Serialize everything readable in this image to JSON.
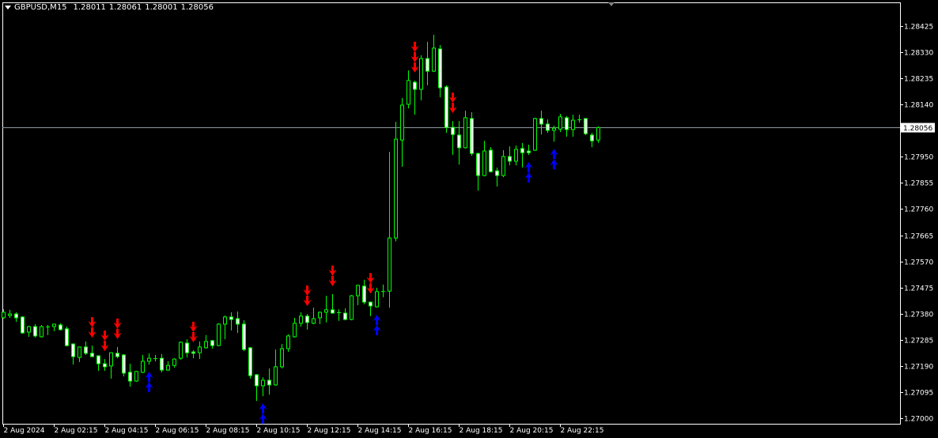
{
  "header": {
    "symbol": "GBPUSD,M15",
    "open": "1.28011",
    "high": "1.28061",
    "low": "1.28001",
    "close": "1.28056"
  },
  "colors": {
    "background": "#000000",
    "candle_outline": "#00ff00",
    "bull_fill": "#000000",
    "bear_fill": "#ffffff",
    "sell_arrow": "#ff0000",
    "buy_arrow": "#0000ff",
    "grid_line": "#ffffff",
    "price_line": "#8c96a0"
  },
  "chart_data": {
    "type": "candlestick",
    "symbol": "GBPUSD",
    "timeframe": "M15",
    "ylim": [
      1.27,
      1.28425
    ],
    "grid": false,
    "current_price": "1.28056",
    "yticks": [
      "1.28425",
      "1.28330",
      "1.28235",
      "1.28140",
      "1.27950",
      "1.27855",
      "1.27760",
      "1.27665",
      "1.27570",
      "1.27475",
      "1.27380",
      "1.27285",
      "1.27190",
      "1.27095",
      "1.27000"
    ],
    "xticks": [
      {
        "bar": 0,
        "label": "2 Aug 2024"
      },
      {
        "bar": 8,
        "label": "2 Aug 02:15"
      },
      {
        "bar": 16,
        "label": "2 Aug 04:15"
      },
      {
        "bar": 24,
        "label": "2 Aug 06:15"
      },
      {
        "bar": 32,
        "label": "2 Aug 08:15"
      },
      {
        "bar": 40,
        "label": "2 Aug 10:15"
      },
      {
        "bar": 48,
        "label": "2 Aug 12:15"
      },
      {
        "bar": 56,
        "label": "2 Aug 14:15"
      },
      {
        "bar": 64,
        "label": "2 Aug 16:15"
      },
      {
        "bar": 72,
        "label": "2 Aug 18:15"
      },
      {
        "bar": 80,
        "label": "2 Aug 20:15"
      },
      {
        "bar": 88,
        "label": "2 Aug 22:15"
      }
    ],
    "ohlc_fields": [
      "open",
      "high",
      "low",
      "close"
    ],
    "candles": [
      [
        1.27365,
        1.27396,
        1.27362,
        1.27385
      ],
      [
        1.27373,
        1.27394,
        1.27365,
        1.27379
      ],
      [
        1.27379,
        1.27385,
        1.2735,
        1.27365
      ],
      [
        1.27368,
        1.27371,
        1.27307,
        1.2731
      ],
      [
        1.27313,
        1.27336,
        1.27296,
        1.27333
      ],
      [
        1.27333,
        1.27342,
        1.27293,
        1.27299
      ],
      [
        1.27296,
        1.27339,
        1.27293,
        1.27333
      ],
      [
        1.27333,
        1.27339,
        1.27302,
        1.27331
      ],
      [
        1.27333,
        1.27343,
        1.27316,
        1.27342
      ],
      [
        1.27339,
        1.27345,
        1.27319,
        1.27322
      ],
      [
        1.27325,
        1.27333,
        1.27261,
        1.27264
      ],
      [
        1.2727,
        1.27272,
        1.27195,
        1.27224
      ],
      [
        1.27221,
        1.2726,
        1.27204,
        1.27259
      ],
      [
        1.27259,
        1.27279,
        1.2723,
        1.27236
      ],
      [
        1.27236,
        1.27264,
        1.27222,
        1.27224
      ],
      [
        1.27227,
        1.27228,
        1.27172,
        1.27198
      ],
      [
        1.27198,
        1.27215,
        1.27172,
        1.27187
      ],
      [
        1.2719,
        1.2724,
        1.27144,
        1.27238
      ],
      [
        1.27236,
        1.27259,
        1.27218,
        1.27224
      ],
      [
        1.2723,
        1.27233,
        1.27152,
        1.27164
      ],
      [
        1.27167,
        1.27198,
        1.27115,
        1.27135
      ],
      [
        1.27135,
        1.27172,
        1.27132,
        1.2717
      ],
      [
        1.27167,
        1.2723,
        1.27164,
        1.27207
      ],
      [
        1.27207,
        1.27236,
        1.27195,
        1.27218
      ],
      [
        1.27218,
        1.2723,
        1.27207,
        1.27216
      ],
      [
        1.27218,
        1.27233,
        1.27167,
        1.27175
      ],
      [
        1.27175,
        1.27207,
        1.27172,
        1.27192
      ],
      [
        1.27192,
        1.27218,
        1.27184,
        1.27215
      ],
      [
        1.27218,
        1.27279,
        1.27213,
        1.27276
      ],
      [
        1.27273,
        1.27287,
        1.27221,
        1.27238
      ],
      [
        1.27241,
        1.27247,
        1.27218,
        1.27236
      ],
      [
        1.27238,
        1.27279,
        1.27215,
        1.27259
      ],
      [
        1.27256,
        1.27302,
        1.27253,
        1.27279
      ],
      [
        1.27282,
        1.27284,
        1.27253,
        1.27264
      ],
      [
        1.27264,
        1.27345,
        1.27262,
        1.27342
      ],
      [
        1.27342,
        1.27373,
        1.27287,
        1.27368
      ],
      [
        1.27368,
        1.27385,
        1.27319,
        1.27359
      ],
      [
        1.27362,
        1.27388,
        1.2731,
        1.27342
      ],
      [
        1.27342,
        1.27356,
        1.27244,
        1.2725
      ],
      [
        1.27256,
        1.27259,
        1.27144,
        1.27155
      ],
      [
        1.27158,
        1.27161,
        1.27063,
        1.27118
      ],
      [
        1.27118,
        1.27149,
        1.2708,
        1.27138
      ],
      [
        1.27138,
        1.27181,
        1.27086,
        1.27121
      ],
      [
        1.27121,
        1.2725,
        1.27118,
        1.27187
      ],
      [
        1.27187,
        1.2727,
        1.27181,
        1.27253
      ],
      [
        1.27253,
        1.27305,
        1.27241,
        1.27299
      ],
      [
        1.27296,
        1.27365,
        1.27293,
        1.27345
      ],
      [
        1.27345,
        1.27385,
        1.27333,
        1.27371
      ],
      [
        1.27371,
        1.27379,
        1.27322,
        1.27348
      ],
      [
        1.27345,
        1.27402,
        1.27342,
        1.27362
      ],
      [
        1.27365,
        1.27388,
        1.27342,
        1.27385
      ],
      [
        1.27385,
        1.27445,
        1.27348,
        1.27394
      ],
      [
        1.27394,
        1.27451,
        1.2738,
        1.27382
      ],
      [
        1.27383,
        1.27396,
        1.27354,
        1.27385
      ],
      [
        1.27382,
        1.27399,
        1.27356,
        1.27359
      ],
      [
        1.27359,
        1.27448,
        1.27356,
        1.27445
      ],
      [
        1.27445,
        1.27485,
        1.27411,
        1.27483
      ],
      [
        1.2748,
        1.27503,
        1.27414,
        1.27422
      ],
      [
        1.27422,
        1.27424,
        1.27371,
        1.27408
      ],
      [
        1.27405,
        1.27474,
        1.27402,
        1.2746
      ],
      [
        1.2746,
        1.27486,
        1.2744,
        1.27462
      ],
      [
        1.27462,
        1.27968,
        1.27402,
        1.27655
      ],
      [
        1.27655,
        1.28077,
        1.27643,
        1.28014
      ],
      [
        1.28011,
        1.28164,
        1.27914,
        1.28138
      ],
      [
        1.28141,
        1.28264,
        1.28126,
        1.28227
      ],
      [
        1.28221,
        1.28227,
        1.28103,
        1.28195
      ],
      [
        1.28195,
        1.28319,
        1.28155,
        1.28307
      ],
      [
        1.28307,
        1.28368,
        1.2821,
        1.28261
      ],
      [
        1.28261,
        1.28393,
        1.28258,
        1.28345
      ],
      [
        1.28342,
        1.28356,
        1.28166,
        1.28201
      ],
      [
        1.28204,
        1.2821,
        1.28037,
        1.28057
      ],
      [
        1.28057,
        1.2808,
        1.27957,
        1.28031
      ],
      [
        1.28029,
        1.2808,
        1.27922,
        1.27983
      ],
      [
        1.27983,
        1.28118,
        1.2798,
        1.28092
      ],
      [
        1.28089,
        1.28112,
        1.27954,
        1.27962
      ],
      [
        1.27962,
        1.27965,
        1.27827,
        1.27882
      ],
      [
        1.27882,
        1.28008,
        1.27879,
        1.27971
      ],
      [
        1.27974,
        1.27985,
        1.27893,
        1.27896
      ],
      [
        1.27899,
        1.27911,
        1.27842,
        1.27882
      ],
      [
        1.27882,
        1.27974,
        1.27876,
        1.27951
      ],
      [
        1.27951,
        1.27988,
        1.27919,
        1.27934
      ],
      [
        1.27934,
        1.27991,
        1.27919,
        1.27977
      ],
      [
        1.2798,
        1.28,
        1.27911,
        1.27965
      ],
      [
        1.27971,
        1.27994,
        1.27957,
        1.27965
      ],
      [
        1.27974,
        1.28092,
        1.27971,
        1.28089
      ],
      [
        1.28089,
        1.28118,
        1.28031,
        1.28069
      ],
      [
        1.28069,
        1.28086,
        1.28037,
        1.28046
      ],
      [
        1.28046,
        1.28063,
        1.28005,
        1.28054
      ],
      [
        1.28051,
        1.28106,
        1.2804,
        1.28095
      ],
      [
        1.28092,
        1.28098,
        1.28023,
        1.28049
      ],
      [
        1.28049,
        1.28103,
        1.28023,
        1.28083
      ],
      [
        1.28086,
        1.28103,
        1.28074,
        1.28086
      ],
      [
        1.28089,
        1.2809,
        1.28029,
        1.28034
      ],
      [
        1.28029,
        1.28037,
        1.27985,
        1.28008
      ],
      [
        1.28011,
        1.28061,
        1.28001,
        1.28056
      ]
    ],
    "signals": [
      {
        "bar": 14,
        "type": "sell",
        "count": 2
      },
      {
        "bar": 16,
        "type": "sell",
        "count": 2
      },
      {
        "bar": 18,
        "type": "sell",
        "count": 2
      },
      {
        "bar": 30,
        "type": "sell",
        "count": 2
      },
      {
        "bar": 48,
        "type": "sell",
        "count": 2
      },
      {
        "bar": 52,
        "type": "sell",
        "count": 2
      },
      {
        "bar": 58,
        "type": "sell",
        "count": 2
      },
      {
        "bar": 65,
        "type": "sell",
        "count": 3
      },
      {
        "bar": 71,
        "type": "sell",
        "count": 2
      },
      {
        "bar": 23,
        "type": "buy",
        "count": 2
      },
      {
        "bar": 41,
        "type": "buy",
        "count": 2
      },
      {
        "bar": 59,
        "type": "buy",
        "count": 2
      },
      {
        "bar": 83,
        "type": "buy",
        "count": 2
      },
      {
        "bar": 87,
        "type": "buy",
        "count": 2
      }
    ]
  }
}
